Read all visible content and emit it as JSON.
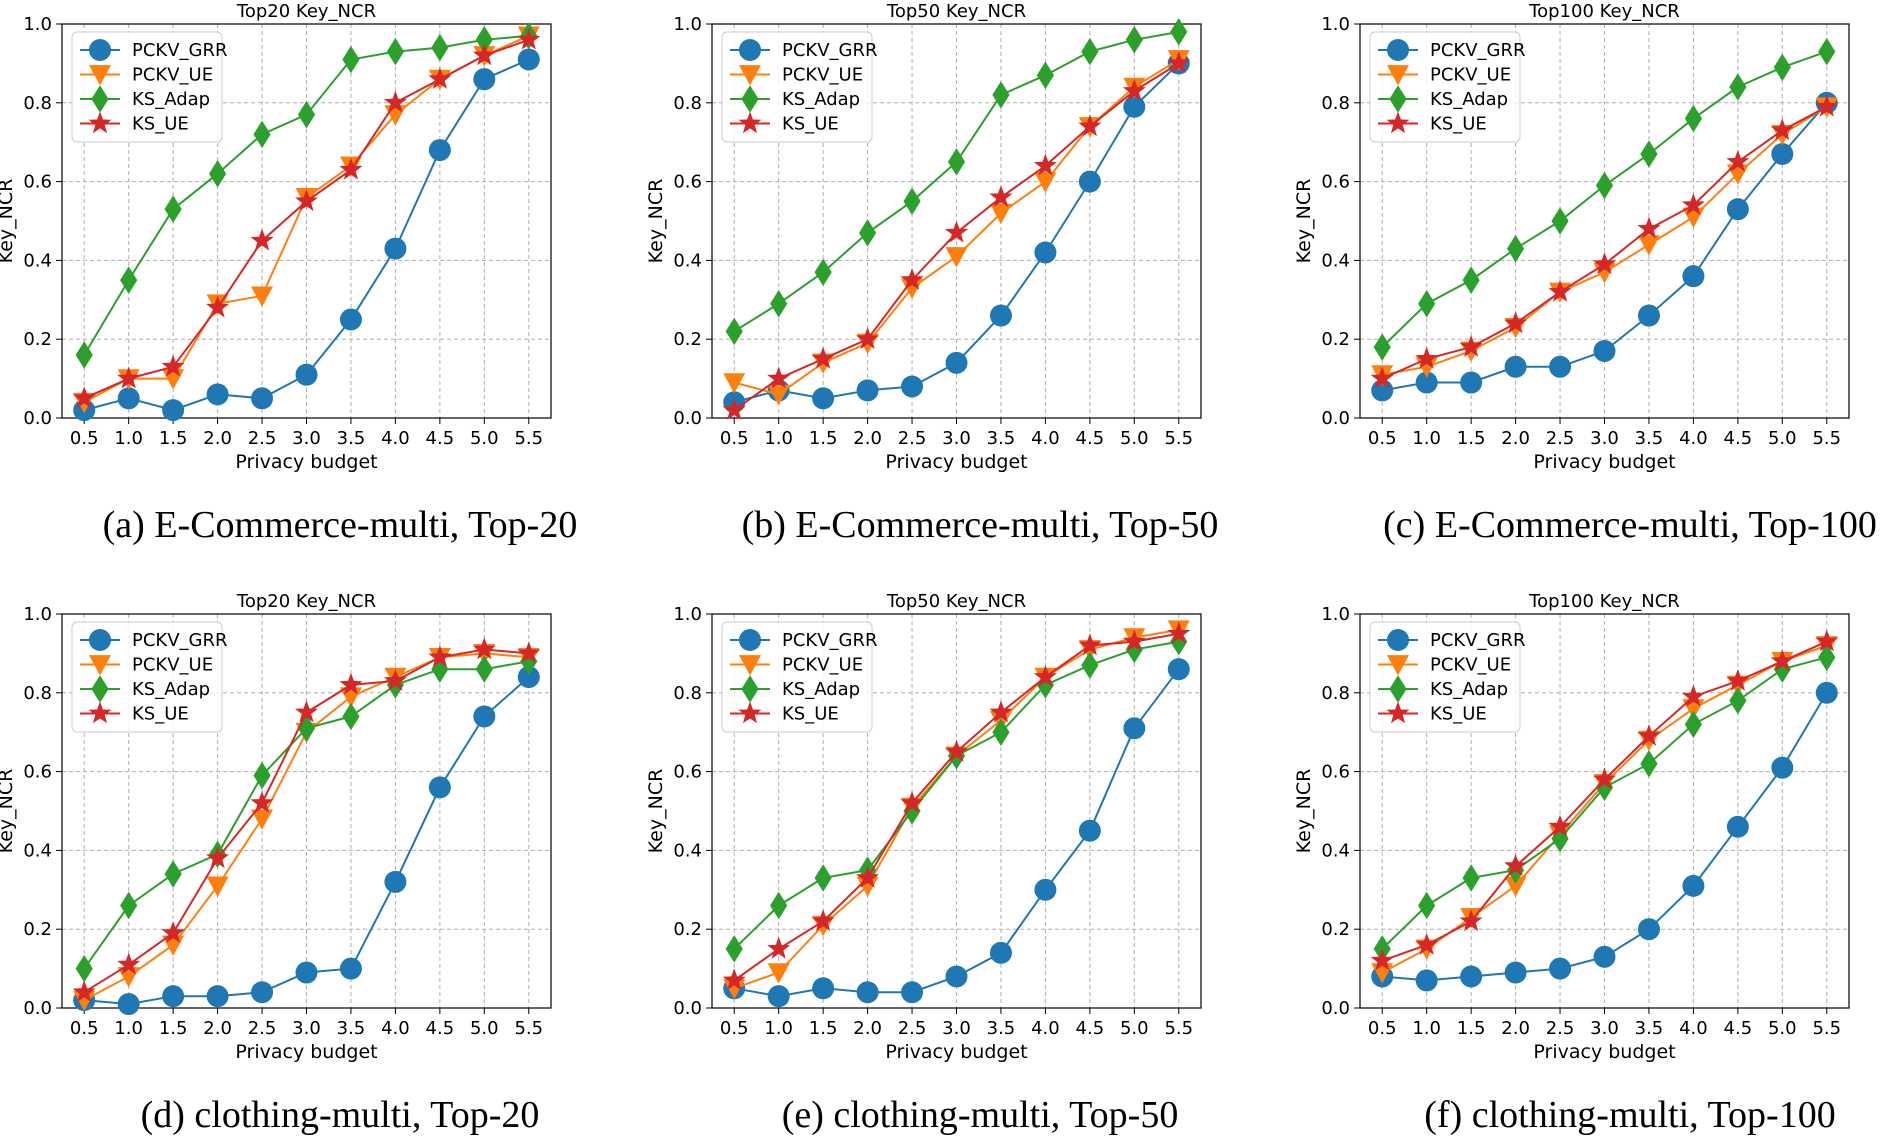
{
  "colors": {
    "PCKV_GRR": "#1f77b4",
    "PCKV_UE": "#ff7f0e",
    "KS_Adap": "#2ca02c",
    "KS_UE": "#d62728"
  },
  "chart_data": [
    {
      "type": "line",
      "title": "Top20 Key_NCR",
      "caption": "(a) E-Commerce-multi, Top-20",
      "xlabel": "Privacy budget",
      "ylabel": "Key_NCR",
      "x": [
        0.5,
        1.0,
        1.5,
        2.0,
        2.5,
        3.0,
        3.5,
        4.0,
        4.5,
        5.0,
        5.5
      ],
      "x_ticks": [
        "0.5",
        "1.0",
        "1.5",
        "2.0",
        "2.5",
        "3.0",
        "3.5",
        "4.0",
        "4.5",
        "5.0",
        "5.5"
      ],
      "y_ticks": [
        "0.0",
        "0.2",
        "0.4",
        "0.6",
        "0.8",
        "1.0"
      ],
      "ylim": [
        0,
        1.0
      ],
      "grid": true,
      "legend": "upper-left",
      "series": [
        {
          "name": "PCKV_GRR",
          "marker": "circle",
          "values": [
            0.02,
            0.05,
            0.02,
            0.06,
            0.05,
            0.11,
            0.25,
            0.43,
            0.68,
            0.86,
            0.91
          ]
        },
        {
          "name": "PCKV_UE",
          "marker": "triangle-down",
          "values": [
            0.04,
            0.1,
            0.1,
            0.29,
            0.31,
            0.56,
            0.64,
            0.77,
            0.86,
            0.92,
            0.97
          ]
        },
        {
          "name": "KS_Adap",
          "marker": "diamond",
          "values": [
            0.16,
            0.35,
            0.53,
            0.62,
            0.72,
            0.77,
            0.91,
            0.93,
            0.94,
            0.96,
            0.97
          ]
        },
        {
          "name": "KS_UE",
          "marker": "star",
          "values": [
            0.05,
            0.1,
            0.13,
            0.28,
            0.45,
            0.55,
            0.63,
            0.8,
            0.86,
            0.92,
            0.96
          ]
        }
      ]
    },
    {
      "type": "line",
      "title": "Top50 Key_NCR",
      "caption": "(b) E-Commerce-multi, Top-50",
      "xlabel": "Privacy budget",
      "ylabel": "Key_NCR",
      "x": [
        0.5,
        1.0,
        1.5,
        2.0,
        2.5,
        3.0,
        3.5,
        4.0,
        4.5,
        5.0,
        5.5
      ],
      "x_ticks": [
        "0.5",
        "1.0",
        "1.5",
        "2.0",
        "2.5",
        "3.0",
        "3.5",
        "4.0",
        "4.5",
        "5.0",
        "5.5"
      ],
      "y_ticks": [
        "0.0",
        "0.2",
        "0.4",
        "0.6",
        "0.8",
        "1.0"
      ],
      "ylim": [
        0,
        1.0
      ],
      "grid": true,
      "legend": "upper-left",
      "series": [
        {
          "name": "PCKV_GRR",
          "marker": "circle",
          "values": [
            0.04,
            0.07,
            0.05,
            0.07,
            0.08,
            0.14,
            0.26,
            0.42,
            0.6,
            0.79,
            0.9
          ]
        },
        {
          "name": "PCKV_UE",
          "marker": "triangle-down",
          "values": [
            0.09,
            0.06,
            0.14,
            0.19,
            0.33,
            0.41,
            0.52,
            0.6,
            0.74,
            0.84,
            0.91
          ]
        },
        {
          "name": "KS_Adap",
          "marker": "diamond",
          "values": [
            0.22,
            0.29,
            0.37,
            0.47,
            0.55,
            0.65,
            0.82,
            0.87,
            0.93,
            0.96,
            0.98
          ]
        },
        {
          "name": "KS_UE",
          "marker": "star",
          "values": [
            0.02,
            0.1,
            0.15,
            0.2,
            0.35,
            0.47,
            0.56,
            0.64,
            0.74,
            0.83,
            0.9
          ]
        }
      ]
    },
    {
      "type": "line",
      "title": "Top100 Key_NCR",
      "caption": "(c) E-Commerce-multi, Top-100",
      "xlabel": "Privacy budget",
      "ylabel": "Key_NCR",
      "x": [
        0.5,
        1.0,
        1.5,
        2.0,
        2.5,
        3.0,
        3.5,
        4.0,
        4.5,
        5.0,
        5.5
      ],
      "x_ticks": [
        "0.5",
        "1.0",
        "1.5",
        "2.0",
        "2.5",
        "3.0",
        "3.5",
        "4.0",
        "4.5",
        "5.0",
        "5.5"
      ],
      "y_ticks": [
        "0.0",
        "0.2",
        "0.4",
        "0.6",
        "0.8",
        "1.0"
      ],
      "ylim": [
        0,
        1.0
      ],
      "grid": true,
      "legend": "upper-left",
      "series": [
        {
          "name": "PCKV_GRR",
          "marker": "circle",
          "values": [
            0.07,
            0.09,
            0.09,
            0.13,
            0.13,
            0.17,
            0.26,
            0.36,
            0.53,
            0.67,
            0.8
          ]
        },
        {
          "name": "PCKV_UE",
          "marker": "triangle-down",
          "values": [
            0.11,
            0.13,
            0.17,
            0.23,
            0.32,
            0.37,
            0.44,
            0.51,
            0.62,
            0.72,
            0.79
          ]
        },
        {
          "name": "KS_Adap",
          "marker": "diamond",
          "values": [
            0.18,
            0.29,
            0.35,
            0.43,
            0.5,
            0.59,
            0.67,
            0.76,
            0.84,
            0.89,
            0.93
          ]
        },
        {
          "name": "KS_UE",
          "marker": "star",
          "values": [
            0.1,
            0.15,
            0.18,
            0.24,
            0.32,
            0.39,
            0.48,
            0.54,
            0.65,
            0.73,
            0.79
          ]
        }
      ]
    },
    {
      "type": "line",
      "title": "Top20 Key_NCR",
      "caption": "(d) clothing-multi, Top-20",
      "xlabel": "Privacy budget",
      "ylabel": "Key_NCR",
      "x": [
        0.5,
        1.0,
        1.5,
        2.0,
        2.5,
        3.0,
        3.5,
        4.0,
        4.5,
        5.0,
        5.5
      ],
      "x_ticks": [
        "0.5",
        "1.0",
        "1.5",
        "2.0",
        "2.5",
        "3.0",
        "3.5",
        "4.0",
        "4.5",
        "5.0",
        "5.5"
      ],
      "y_ticks": [
        "0.0",
        "0.2",
        "0.4",
        "0.6",
        "0.8",
        "1.0"
      ],
      "ylim": [
        0,
        1.0
      ],
      "grid": true,
      "legend": "upper-left",
      "series": [
        {
          "name": "PCKV_GRR",
          "marker": "circle",
          "values": [
            0.02,
            0.01,
            0.03,
            0.03,
            0.04,
            0.09,
            0.1,
            0.32,
            0.56,
            0.74,
            0.84
          ]
        },
        {
          "name": "PCKV_UE",
          "marker": "triangle-down",
          "values": [
            0.02,
            0.08,
            0.16,
            0.31,
            0.48,
            0.7,
            0.79,
            0.84,
            0.89,
            0.9,
            0.89
          ]
        },
        {
          "name": "KS_Adap",
          "marker": "diamond",
          "values": [
            0.1,
            0.26,
            0.34,
            0.39,
            0.59,
            0.71,
            0.74,
            0.82,
            0.86,
            0.86,
            0.88
          ]
        },
        {
          "name": "KS_UE",
          "marker": "star",
          "values": [
            0.04,
            0.11,
            0.19,
            0.38,
            0.52,
            0.75,
            0.82,
            0.83,
            0.89,
            0.91,
            0.9
          ]
        }
      ]
    },
    {
      "type": "line",
      "title": "Top50 Key_NCR",
      "caption": "(e) clothing-multi, Top-50",
      "xlabel": "Privacy budget",
      "ylabel": "Key_NCR",
      "x": [
        0.5,
        1.0,
        1.5,
        2.0,
        2.5,
        3.0,
        3.5,
        4.0,
        4.5,
        5.0,
        5.5
      ],
      "x_ticks": [
        "0.5",
        "1.0",
        "1.5",
        "2.0",
        "2.5",
        "3.0",
        "3.5",
        "4.0",
        "4.5",
        "5.0",
        "5.5"
      ],
      "y_ticks": [
        "0.0",
        "0.2",
        "0.4",
        "0.6",
        "0.8",
        "1.0"
      ],
      "ylim": [
        0,
        1.0
      ],
      "grid": true,
      "legend": "upper-left",
      "series": [
        {
          "name": "PCKV_GRR",
          "marker": "circle",
          "values": [
            0.05,
            0.03,
            0.05,
            0.04,
            0.04,
            0.08,
            0.14,
            0.3,
            0.45,
            0.71,
            0.86
          ]
        },
        {
          "name": "PCKV_UE",
          "marker": "triangle-down",
          "values": [
            0.05,
            0.09,
            0.21,
            0.31,
            0.51,
            0.64,
            0.73,
            0.84,
            0.91,
            0.94,
            0.96
          ]
        },
        {
          "name": "KS_Adap",
          "marker": "diamond",
          "values": [
            0.15,
            0.26,
            0.33,
            0.35,
            0.5,
            0.64,
            0.7,
            0.82,
            0.87,
            0.91,
            0.93
          ]
        },
        {
          "name": "KS_UE",
          "marker": "star",
          "values": [
            0.07,
            0.15,
            0.22,
            0.33,
            0.52,
            0.65,
            0.75,
            0.84,
            0.92,
            0.93,
            0.95
          ]
        }
      ]
    },
    {
      "type": "line",
      "title": "Top100 Key_NCR",
      "caption": "(f) clothing-multi, Top-100",
      "xlabel": "Privacy budget",
      "ylabel": "Key_NCR",
      "x": [
        0.5,
        1.0,
        1.5,
        2.0,
        2.5,
        3.0,
        3.5,
        4.0,
        4.5,
        5.0,
        5.5
      ],
      "x_ticks": [
        "0.5",
        "1.0",
        "1.5",
        "2.0",
        "2.5",
        "3.0",
        "3.5",
        "4.0",
        "4.5",
        "5.0",
        "5.5"
      ],
      "y_ticks": [
        "0.0",
        "0.2",
        "0.4",
        "0.6",
        "0.8",
        "1.0"
      ],
      "ylim": [
        0,
        1.0
      ],
      "grid": true,
      "legend": "upper-left",
      "series": [
        {
          "name": "PCKV_GRR",
          "marker": "circle",
          "values": [
            0.08,
            0.07,
            0.08,
            0.09,
            0.1,
            0.13,
            0.2,
            0.31,
            0.46,
            0.61,
            0.8
          ]
        },
        {
          "name": "PCKV_UE",
          "marker": "triangle-down",
          "values": [
            0.09,
            0.15,
            0.23,
            0.31,
            0.44,
            0.57,
            0.68,
            0.76,
            0.82,
            0.88,
            0.92
          ]
        },
        {
          "name": "KS_Adap",
          "marker": "diamond",
          "values": [
            0.15,
            0.26,
            0.33,
            0.35,
            0.43,
            0.56,
            0.62,
            0.72,
            0.78,
            0.86,
            0.89
          ]
        },
        {
          "name": "KS_UE",
          "marker": "star",
          "values": [
            0.12,
            0.16,
            0.22,
            0.36,
            0.46,
            0.58,
            0.69,
            0.79,
            0.83,
            0.88,
            0.93
          ]
        }
      ]
    }
  ]
}
